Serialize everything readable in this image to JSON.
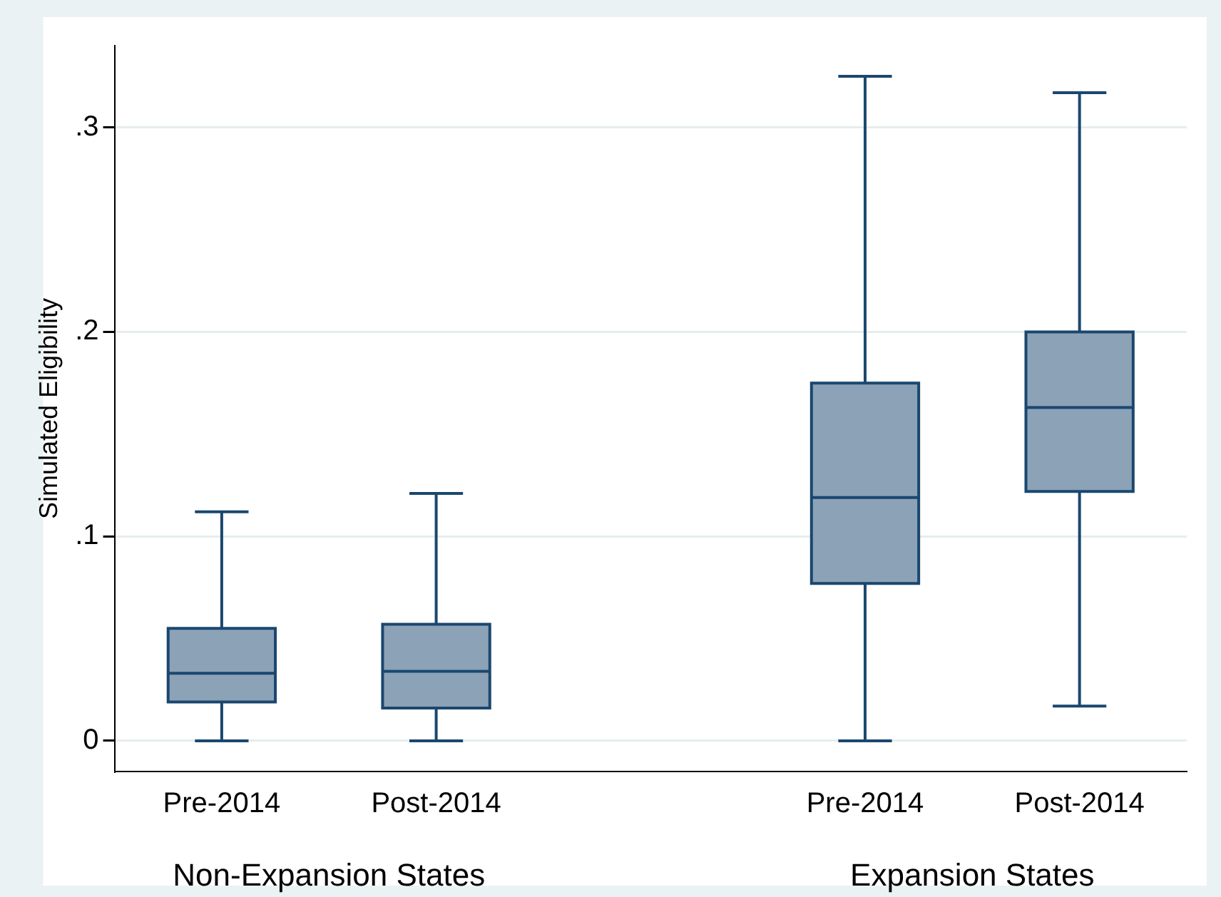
{
  "chart_data": {
    "type": "box",
    "ylabel": "Simulated Eligibility",
    "categories": [
      "Pre-2014",
      "Post-2014",
      null,
      "Pre-2014",
      "Post-2014"
    ],
    "boxes": [
      {
        "low": 0,
        "q1": 0.019,
        "median": 0.033,
        "q3": 0.055,
        "high": 0.112
      },
      {
        "low": 0,
        "q1": 0.016,
        "median": 0.034,
        "q3": 0.057,
        "high": 0.121
      },
      null,
      {
        "low": 0,
        "q1": 0.077,
        "median": 0.119,
        "q3": 0.175,
        "high": 0.325
      },
      {
        "low": 0.017,
        "q1": 0.122,
        "median": 0.163,
        "q3": 0.2,
        "high": 0.317
      }
    ],
    "color": "#8ca2b7",
    "ylim": [
      -0.015,
      0.34
    ],
    "yticks": [
      {
        "value": 0,
        "label": "0"
      },
      {
        "value": 0.1,
        "label": ".1"
      },
      {
        "value": 0.2,
        "label": ".2"
      },
      {
        "value": 0.3,
        "label": ".3"
      }
    ],
    "grid": "y",
    "legend": false,
    "annotations": [
      "Non-Expansion States",
      "Expansion States"
    ]
  }
}
